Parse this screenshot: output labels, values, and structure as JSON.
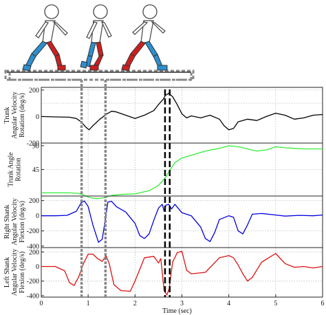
{
  "chart_data": {
    "type": "line",
    "xlabel": "Time (sec)",
    "xlim": [
      0,
      6
    ],
    "xticks": [
      0,
      1,
      2,
      3,
      4,
      5,
      6
    ],
    "grid_x": true,
    "event_lines_dotted_gray": [
      0.86,
      1.37
    ],
    "event_lines_dashed_black": [
      2.64,
      2.74
    ],
    "panels": [
      {
        "id": "trunk-vel",
        "ylabel": [
          "Trunk",
          "Angular Velocity",
          "Rotation (deg/s)"
        ],
        "ylim": [
          -200,
          220
        ],
        "yticks": [
          -200,
          0,
          200
        ],
        "yticklabels": [
          "-200",
          "0",
          "200"
        ],
        "grid_y": [
          100,
          200
        ],
        "color": "#000000",
        "x": [
          0,
          0.3,
          0.6,
          0.75,
          0.85,
          0.95,
          1.02,
          1.1,
          1.25,
          1.4,
          1.5,
          1.6,
          1.8,
          2.0,
          2.2,
          2.4,
          2.5,
          2.6,
          2.65,
          2.72,
          2.8,
          2.9,
          3.0,
          3.1,
          3.2,
          3.4,
          3.6,
          3.8,
          3.9,
          4.0,
          4.1,
          4.2,
          4.4,
          4.6,
          4.8,
          5.0,
          5.2,
          5.4,
          5.6,
          5.8,
          6.0
        ],
        "y": [
          0,
          -3,
          -5,
          -15,
          -40,
          -80,
          -100,
          -70,
          -20,
          20,
          40,
          35,
          10,
          -15,
          10,
          45,
          90,
          130,
          160,
          175,
          150,
          90,
          20,
          -10,
          5,
          -10,
          10,
          -20,
          -70,
          -100,
          -90,
          -40,
          -20,
          -30,
          0,
          25,
          10,
          -20,
          -10,
          10,
          15
        ]
      },
      {
        "id": "trunk-angle",
        "ylabel": [
          "Trunk Angle",
          "Rotation"
        ],
        "ylim": [
          -5,
          95
        ],
        "yticks": [
          45,
          90
        ],
        "yticklabels": [
          "45",
          "90"
        ],
        "grid_y": [
          45
        ],
        "color": "#33ee33",
        "x": [
          0,
          0.6,
          0.8,
          0.9,
          1.0,
          1.1,
          1.2,
          1.35,
          1.5,
          1.7,
          2.0,
          2.3,
          2.5,
          2.65,
          2.75,
          2.85,
          3.0,
          3.2,
          3.5,
          3.8,
          4.0,
          4.2,
          4.4,
          4.6,
          4.8,
          5.0,
          5.2,
          5.4,
          5.6,
          5.8,
          6.0
        ],
        "y": [
          1,
          1,
          0,
          -3,
          -7,
          -9,
          -10,
          -8,
          -4,
          -2,
          -1,
          5,
          15,
          30,
          45,
          58,
          67,
          72,
          80,
          85,
          90,
          88,
          84,
          80,
          82,
          88,
          86,
          85,
          84,
          84,
          84
        ]
      },
      {
        "id": "right-shank",
        "ylabel": [
          "Right Shank",
          "Angular Velocity",
          "Flexion (deg/s)"
        ],
        "ylim": [
          -420,
          260
        ],
        "yticks": [
          -400,
          -200,
          0,
          200
        ],
        "yticklabels": [
          "-400",
          "-200",
          "0",
          "200"
        ],
        "grid_y": [
          -200,
          200
        ],
        "color": "#0000dd",
        "x": [
          0,
          0.3,
          0.55,
          0.75,
          0.85,
          0.92,
          1.0,
          1.1,
          1.22,
          1.3,
          1.36,
          1.42,
          1.5,
          1.6,
          1.8,
          2.0,
          2.1,
          2.2,
          2.3,
          2.4,
          2.5,
          2.58,
          2.62,
          2.66,
          2.72,
          2.78,
          2.85,
          3.0,
          3.2,
          3.4,
          3.5,
          3.6,
          3.7,
          3.8,
          4.0,
          4.1,
          4.2,
          4.3,
          4.4,
          4.5,
          4.7,
          5.0,
          5.2,
          5.5,
          5.8,
          6.0
        ],
        "y": [
          0,
          0,
          5,
          60,
          170,
          195,
          120,
          -120,
          -350,
          -310,
          -80,
          180,
          190,
          120,
          50,
          -100,
          -260,
          -300,
          -240,
          -60,
          100,
          150,
          60,
          140,
          150,
          90,
          150,
          40,
          0,
          -150,
          -300,
          -340,
          -220,
          -50,
          0,
          -20,
          -200,
          -240,
          -120,
          20,
          30,
          10,
          -5,
          5,
          0,
          10
        ]
      },
      {
        "id": "left-shank",
        "ylabel": [
          "Left Shank",
          "Angular Velocity",
          "Flexion (deg/s)"
        ],
        "ylim": [
          -420,
          260
        ],
        "yticks": [
          -400,
          -200,
          0,
          200
        ],
        "yticklabels": [
          "-400",
          "-200",
          "0",
          "200"
        ],
        "grid_y": [
          -200,
          200
        ],
        "color": "#dd1111",
        "x": [
          0,
          0.3,
          0.5,
          0.6,
          0.7,
          0.8,
          0.9,
          1.0,
          1.1,
          1.2,
          1.3,
          1.38,
          1.45,
          1.55,
          1.7,
          1.9,
          2.0,
          2.2,
          2.4,
          2.5,
          2.55,
          2.62,
          2.68,
          2.73,
          2.8,
          2.9,
          3.0,
          3.1,
          3.2,
          3.5,
          3.8,
          4.0,
          4.1,
          4.2,
          4.3,
          4.4,
          4.5,
          4.7,
          5.0,
          5.2,
          5.4,
          5.6,
          5.8,
          6.0
        ],
        "y": [
          0,
          0,
          -60,
          -220,
          -260,
          -140,
          40,
          170,
          170,
          110,
          70,
          150,
          40,
          -250,
          -330,
          -340,
          -200,
          120,
          140,
          50,
          110,
          -330,
          -390,
          -300,
          60,
          190,
          210,
          -50,
          -100,
          -80,
          120,
          150,
          120,
          20,
          -100,
          -200,
          -150,
          60,
          180,
          40,
          -10,
          0,
          -20,
          0
        ]
      }
    ]
  },
  "illustration": {
    "figures": [
      "walker-left-swing",
      "walker-double-support",
      "walker-right-swing"
    ],
    "legend_colors": {
      "right_leg": "#2b8fd0",
      "left_leg": "#cc1f1f",
      "body": "#ffffff"
    }
  }
}
